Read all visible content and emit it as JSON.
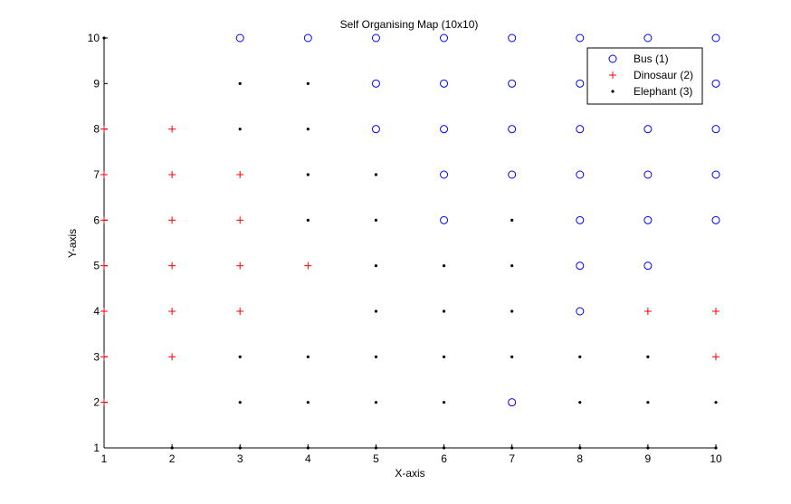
{
  "chart_data": {
    "type": "scatter",
    "title": "Self Organising Map (10x10)",
    "xlabel": "X-axis",
    "ylabel": "Y-axis",
    "xlim": [
      1,
      10
    ],
    "ylim": [
      1,
      10
    ],
    "xticks": [
      1,
      2,
      3,
      4,
      5,
      6,
      7,
      8,
      9,
      10
    ],
    "yticks": [
      1,
      2,
      3,
      4,
      5,
      6,
      7,
      8,
      9,
      10
    ],
    "grid": false,
    "legend_position": "top-right",
    "series": [
      {
        "name": "Bus (1)",
        "marker": "circle",
        "color": "#0000ff",
        "points": [
          [
            3,
            10
          ],
          [
            4,
            10
          ],
          [
            5,
            10
          ],
          [
            6,
            10
          ],
          [
            7,
            10
          ],
          [
            8,
            10
          ],
          [
            9,
            10
          ],
          [
            10,
            10
          ],
          [
            5,
            9
          ],
          [
            6,
            9
          ],
          [
            7,
            9
          ],
          [
            8,
            9
          ],
          [
            10,
            9
          ],
          [
            5,
            8
          ],
          [
            6,
            8
          ],
          [
            7,
            8
          ],
          [
            8,
            8
          ],
          [
            9,
            8
          ],
          [
            10,
            8
          ],
          [
            6,
            7
          ],
          [
            7,
            7
          ],
          [
            8,
            7
          ],
          [
            9,
            7
          ],
          [
            10,
            7
          ],
          [
            6,
            6
          ],
          [
            8,
            6
          ],
          [
            9,
            6
          ],
          [
            10,
            6
          ],
          [
            8,
            5
          ],
          [
            9,
            5
          ],
          [
            8,
            4
          ],
          [
            7,
            2
          ]
        ]
      },
      {
        "name": "Dinosaur (2)",
        "marker": "plus",
        "color": "#ff0000",
        "points": [
          [
            1,
            8
          ],
          [
            2,
            8
          ],
          [
            1,
            7
          ],
          [
            2,
            7
          ],
          [
            3,
            7
          ],
          [
            1,
            6
          ],
          [
            2,
            6
          ],
          [
            3,
            6
          ],
          [
            1,
            5
          ],
          [
            2,
            5
          ],
          [
            3,
            5
          ],
          [
            4,
            5
          ],
          [
            1,
            4
          ],
          [
            2,
            4
          ],
          [
            3,
            4
          ],
          [
            9,
            4
          ],
          [
            10,
            4
          ],
          [
            1,
            3
          ],
          [
            2,
            3
          ],
          [
            10,
            3
          ],
          [
            1,
            2
          ]
        ]
      },
      {
        "name": "Elephant (3)",
        "marker": "dot",
        "color": "#000000",
        "points": [
          [
            1,
            10
          ],
          [
            3,
            9
          ],
          [
            4,
            9
          ],
          [
            3,
            8
          ],
          [
            4,
            8
          ],
          [
            4,
            7
          ],
          [
            5,
            7
          ],
          [
            4,
            6
          ],
          [
            5,
            6
          ],
          [
            7,
            6
          ],
          [
            5,
            5
          ],
          [
            6,
            5
          ],
          [
            7,
            5
          ],
          [
            5,
            4
          ],
          [
            6,
            4
          ],
          [
            7,
            4
          ],
          [
            3,
            3
          ],
          [
            4,
            3
          ],
          [
            5,
            3
          ],
          [
            6,
            3
          ],
          [
            7,
            3
          ],
          [
            8,
            3
          ],
          [
            9,
            3
          ],
          [
            3,
            2
          ],
          [
            4,
            2
          ],
          [
            5,
            2
          ],
          [
            6,
            2
          ],
          [
            8,
            2
          ],
          [
            9,
            2
          ],
          [
            10,
            2
          ],
          [
            2,
            1
          ],
          [
            3,
            1
          ],
          [
            4,
            1
          ],
          [
            5,
            1
          ],
          [
            6,
            1
          ],
          [
            7,
            1
          ],
          [
            8,
            1
          ],
          [
            9,
            1
          ],
          [
            10,
            1
          ]
        ]
      }
    ]
  }
}
